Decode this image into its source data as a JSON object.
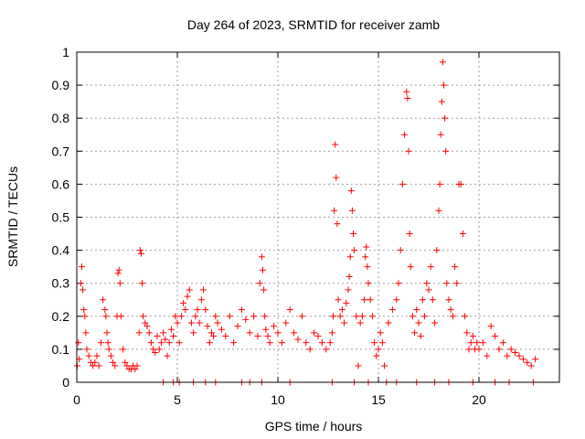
{
  "chart_data": {
    "type": "scatter",
    "title": "Day 264 of 2023, SRMTID for receiver zamb",
    "xlabel": "GPS time / hours",
    "ylabel": "SRMTID / TECUs",
    "xlim": [
      0,
      24
    ],
    "ylim": [
      0,
      1
    ],
    "grid": true,
    "marker": "+",
    "marker_color": "#ff0000",
    "x_ticks": [
      0,
      5,
      10,
      15,
      20
    ],
    "x_tick_labels": [
      "0",
      "5",
      "10",
      "15",
      "20"
    ],
    "y_ticks": [
      0,
      0.1,
      0.2,
      0.3,
      0.4,
      0.5,
      0.6,
      0.7,
      0.8,
      0.9,
      1
    ],
    "y_tick_labels": [
      "0",
      "0.1",
      "0.2",
      "0.3",
      "0.4",
      "0.5",
      "0.6",
      "0.7",
      "0.8",
      "0.9",
      "1"
    ],
    "series": [
      {
        "name": "SRMTID",
        "x": [
          0.02,
          0.08,
          0.12,
          0.2,
          0.25,
          0.3,
          0.35,
          0.4,
          0.45,
          0.5,
          0.6,
          0.7,
          0.8,
          0.9,
          1.0,
          1.1,
          1.2,
          1.3,
          1.4,
          1.45,
          1.5,
          1.55,
          1.6,
          1.7,
          1.8,
          1.9,
          2.0,
          2.05,
          2.1,
          2.15,
          2.2,
          2.3,
          2.4,
          2.5,
          2.6,
          2.7,
          2.8,
          2.9,
          3.0,
          3.1,
          3.15,
          3.2,
          3.25,
          3.3,
          3.4,
          3.5,
          3.6,
          3.7,
          3.8,
          3.9,
          4.0,
          4.1,
          4.2,
          4.3,
          4.4,
          4.5,
          4.6,
          4.7,
          4.8,
          4.9,
          5.0,
          5.1,
          5.2,
          5.3,
          5.4,
          5.5,
          5.6,
          5.7,
          5.8,
          5.9,
          6.0,
          6.1,
          6.2,
          6.3,
          6.4,
          6.5,
          6.6,
          6.7,
          6.8,
          6.9,
          7.0,
          7.2,
          7.4,
          7.6,
          7.8,
          8.0,
          8.2,
          8.4,
          8.6,
          8.8,
          9.0,
          9.1,
          9.2,
          9.25,
          9.3,
          9.35,
          9.4,
          9.5,
          9.6,
          9.8,
          10.0,
          10.2,
          10.4,
          10.6,
          10.8,
          11.0,
          11.2,
          11.4,
          11.6,
          11.8,
          12.0,
          12.2,
          12.4,
          12.6,
          12.7,
          12.75,
          12.8,
          12.85,
          12.9,
          12.95,
          13.0,
          13.1,
          13.2,
          13.3,
          13.4,
          13.5,
          13.55,
          13.6,
          13.65,
          13.7,
          13.75,
          13.8,
          13.9,
          14.0,
          14.1,
          14.2,
          14.3,
          14.35,
          14.4,
          14.45,
          14.5,
          14.6,
          14.7,
          14.8,
          14.9,
          15.0,
          15.1,
          15.2,
          15.3,
          15.5,
          15.7,
          15.9,
          16.0,
          16.1,
          16.2,
          16.3,
          16.4,
          16.45,
          16.5,
          16.55,
          16.6,
          16.7,
          16.8,
          16.9,
          17.0,
          17.1,
          17.2,
          17.3,
          17.4,
          17.5,
          17.6,
          17.7,
          17.8,
          17.9,
          18.0,
          18.05,
          18.1,
          18.15,
          18.2,
          18.25,
          18.3,
          18.35,
          18.4,
          18.5,
          18.6,
          18.7,
          18.8,
          18.9,
          19.0,
          19.1,
          19.2,
          19.3,
          19.4,
          19.5,
          19.6,
          19.7,
          19.8,
          19.9,
          20.0,
          20.2,
          20.4,
          20.6,
          20.8,
          21.0,
          21.2,
          21.4,
          21.6,
          21.8,
          22.0,
          22.2,
          22.4,
          22.6,
          22.8
        ],
        "y": [
          0.05,
          0.12,
          0.07,
          0.3,
          0.35,
          0.28,
          0.22,
          0.2,
          0.15,
          0.1,
          0.08,
          0.06,
          0.05,
          0.06,
          0.08,
          0.05,
          0.12,
          0.25,
          0.22,
          0.2,
          0.15,
          0.12,
          0.1,
          0.08,
          0.06,
          0.05,
          0.2,
          0.33,
          0.34,
          0.3,
          0.2,
          0.1,
          0.06,
          0.05,
          0.04,
          0.04,
          0.05,
          0.04,
          0.05,
          0.15,
          0.4,
          0.39,
          0.3,
          0.2,
          0.18,
          0.17,
          0.15,
          0.12,
          0.1,
          0.09,
          0.14,
          0.1,
          0.12,
          0.15,
          0.13,
          0.08,
          0.12,
          0.16,
          0.14,
          0.2,
          0.18,
          0.12,
          0.2,
          0.24,
          0.22,
          0.26,
          0.28,
          0.18,
          0.15,
          0.2,
          0.22,
          0.18,
          0.25,
          0.28,
          0.22,
          0.17,
          0.12,
          0.15,
          0.14,
          0.2,
          0.18,
          0.16,
          0.14,
          0.2,
          0.12,
          0.17,
          0.22,
          0.19,
          0.15,
          0.2,
          0.14,
          0.3,
          0.38,
          0.34,
          0.28,
          0.2,
          0.16,
          0.14,
          0.12,
          0.17,
          0.15,
          0.12,
          0.18,
          0.22,
          0.15,
          0.13,
          0.2,
          0.12,
          0.1,
          0.15,
          0.14,
          0.12,
          0.1,
          0.12,
          0.15,
          0.2,
          0.52,
          0.72,
          0.62,
          0.48,
          0.25,
          0.2,
          0.22,
          0.18,
          0.24,
          0.28,
          0.32,
          0.38,
          0.58,
          0.52,
          0.45,
          0.4,
          0.2,
          0.05,
          0.18,
          0.2,
          0.25,
          0.38,
          0.41,
          0.35,
          0.3,
          0.25,
          0.2,
          0.12,
          0.08,
          0.1,
          0.15,
          0.12,
          0.05,
          0.18,
          0.22,
          0.25,
          0.3,
          0.4,
          0.6,
          0.75,
          0.88,
          0.86,
          0.7,
          0.45,
          0.35,
          0.2,
          0.15,
          0.22,
          0.18,
          0.14,
          0.25,
          0.2,
          0.3,
          0.28,
          0.35,
          0.25,
          0.18,
          0.4,
          0.52,
          0.6,
          0.75,
          0.85,
          0.97,
          0.9,
          0.8,
          0.7,
          0.3,
          0.25,
          0.22,
          0.2,
          0.35,
          0.3,
          0.6,
          0.6,
          0.45,
          0.2,
          0.15,
          0.1,
          0.12,
          0.14,
          0.1,
          0.12,
          0.1,
          0.12,
          0.08,
          0.17,
          0.14,
          0.1,
          0.12,
          0.08,
          0.1,
          0.09,
          0.08,
          0.07,
          0.06,
          0.05,
          0.07
        ],
        "zero_x": [
          4.3,
          4.8,
          5.1,
          5.8,
          6.4,
          6.9,
          8.2,
          8.6,
          9.2,
          10.6,
          12.7,
          13.8,
          14.5,
          15.4,
          15.9,
          16.9,
          17.8,
          18.5,
          19.7,
          20.8,
          21.5,
          22.7
        ]
      }
    ]
  }
}
